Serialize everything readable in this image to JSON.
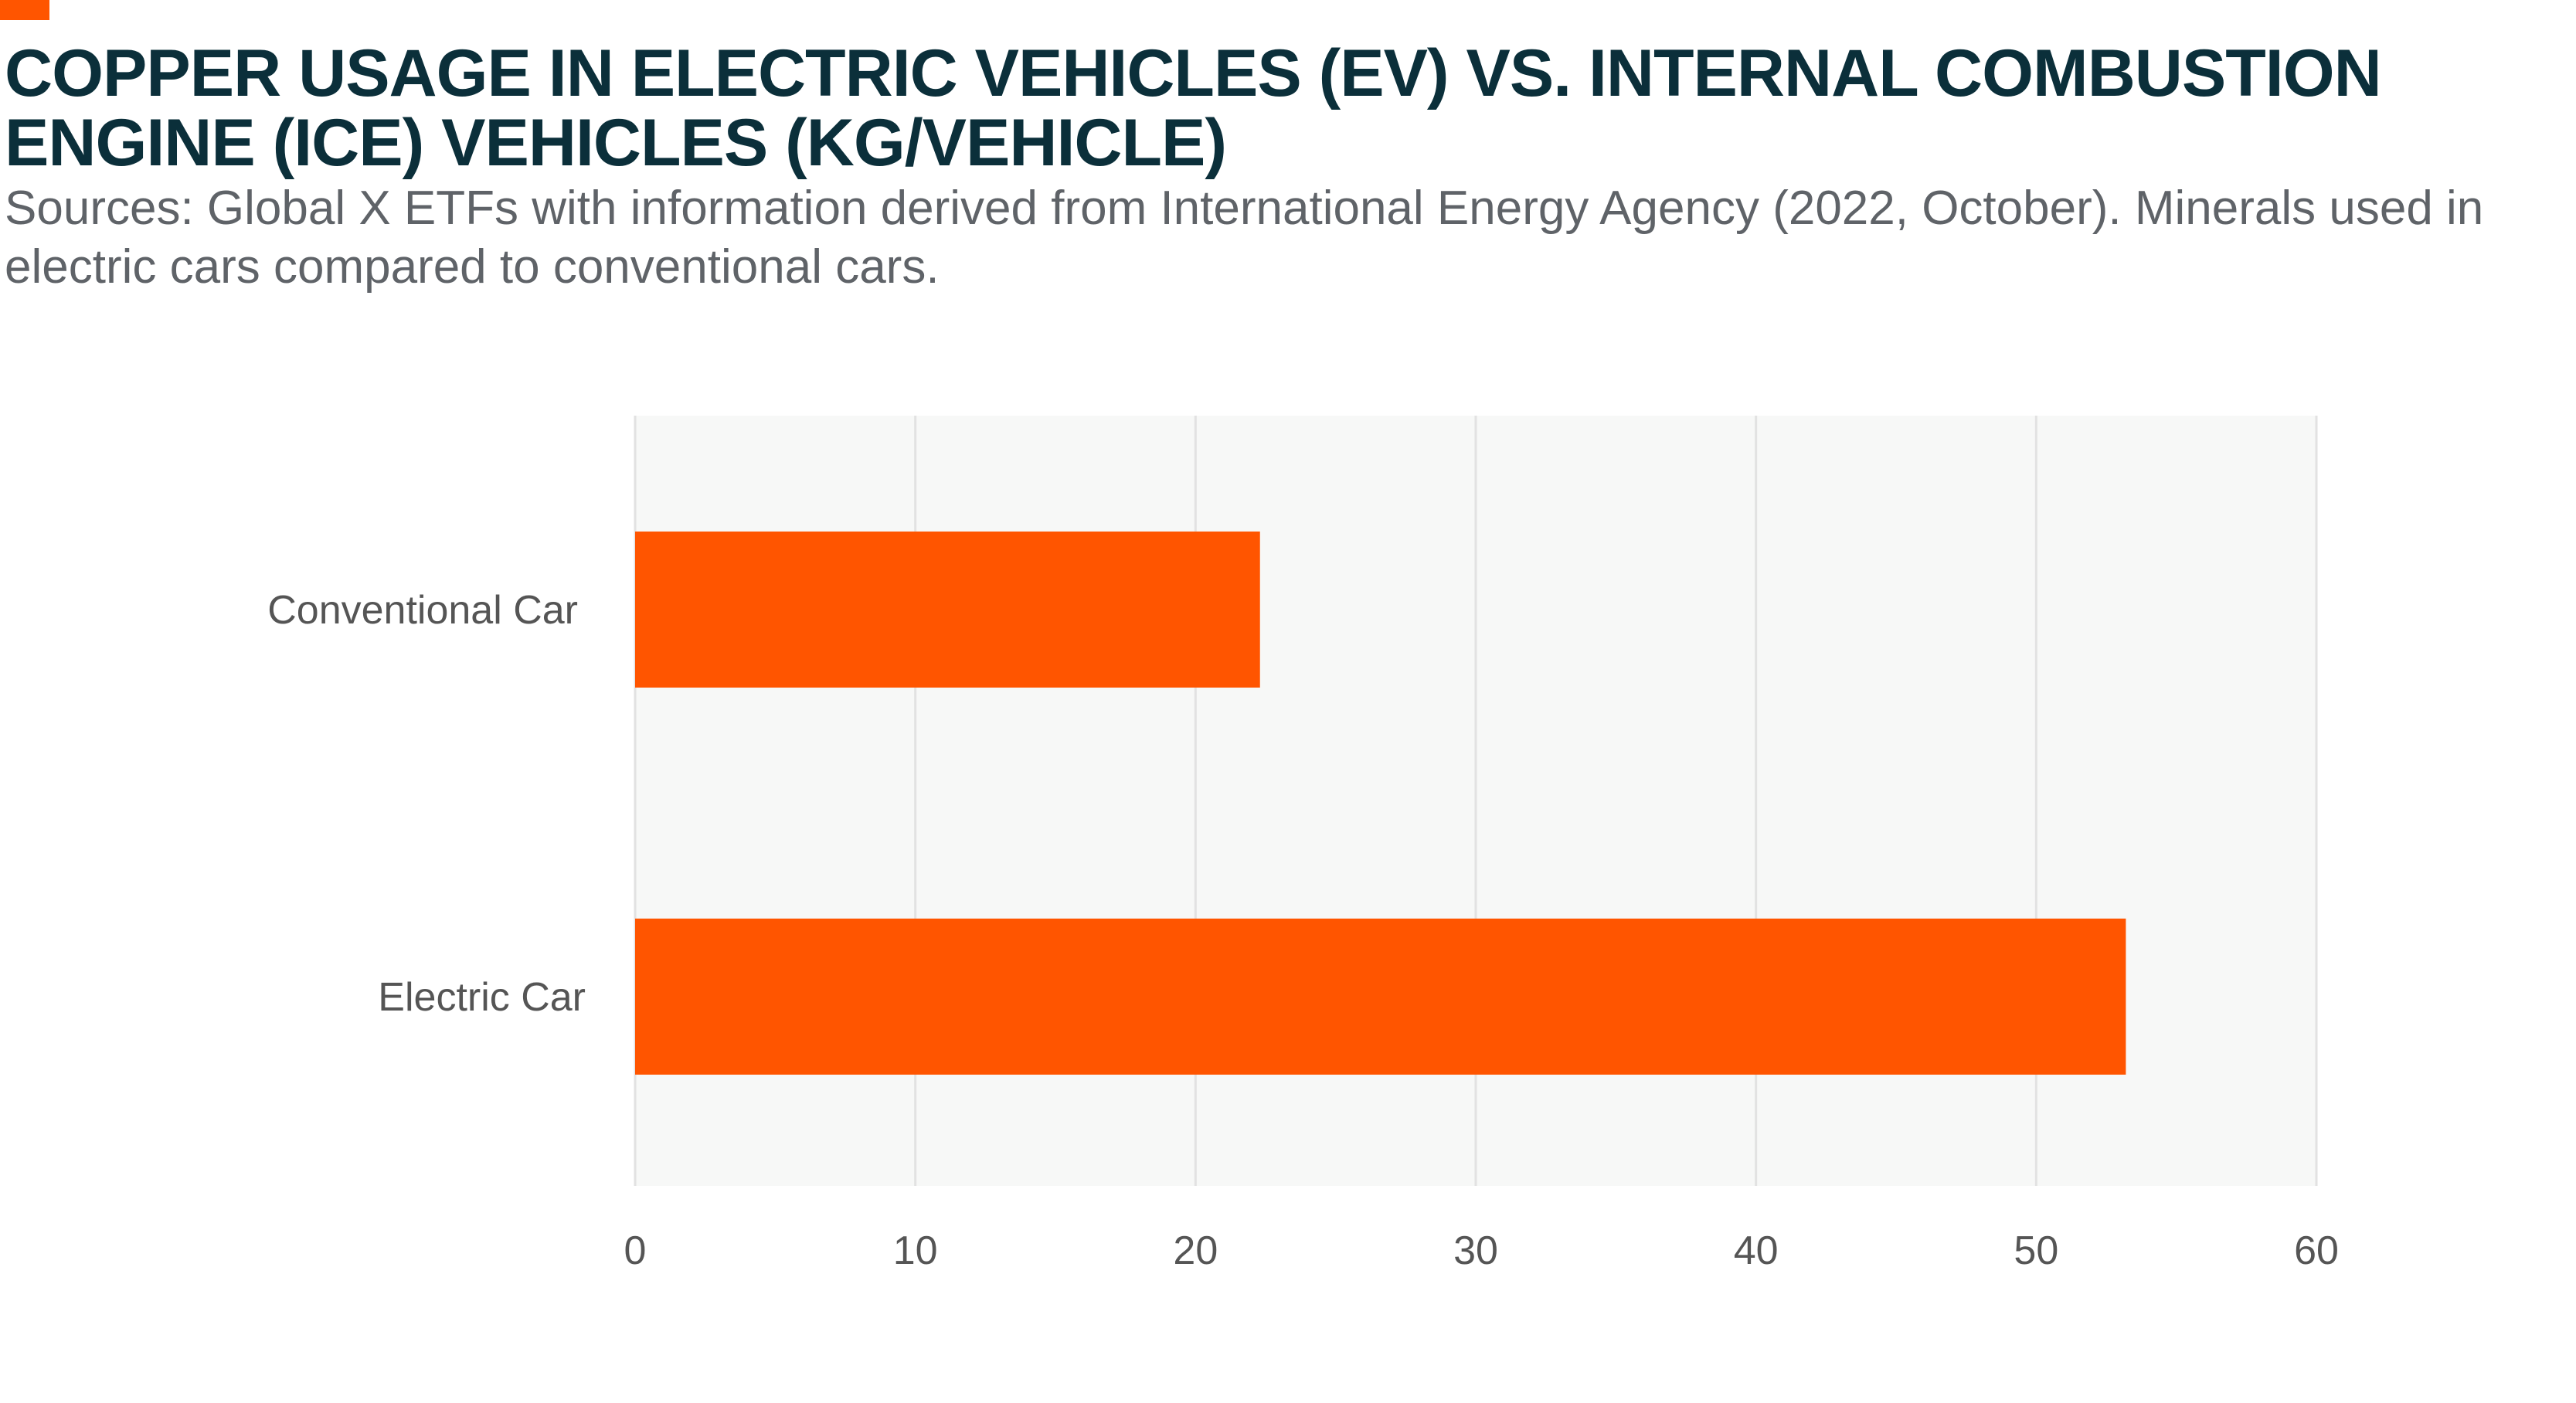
{
  "header": {
    "title": "COPPER USAGE IN ELECTRIC VEHICLES (EV) VS. INTERNAL COMBUSTION ENGINE (ICE) VEHICLES (KG/VEHICLE)",
    "subtitle": "Sources: Global X ETFs with information derived from International Energy Agency (2022, October). Minerals used in electric cars compared to conventional cars."
  },
  "colors": {
    "accent": "#ff5500",
    "bar": "#ff5500",
    "title": "#0b2f3a",
    "plot_bg": "#f7f8f7",
    "grid": "#e2e2e2"
  },
  "chart_data": {
    "type": "bar",
    "orientation": "horizontal",
    "categories": [
      "Conventional Car",
      "Electric Car"
    ],
    "values": [
      22.3,
      53.2
    ],
    "title": "",
    "xlabel": "",
    "ylabel": "",
    "xlim": [
      0,
      60
    ],
    "xticks": [
      0,
      10,
      20,
      30,
      40,
      50,
      60
    ],
    "grid": true,
    "legend": "none"
  }
}
